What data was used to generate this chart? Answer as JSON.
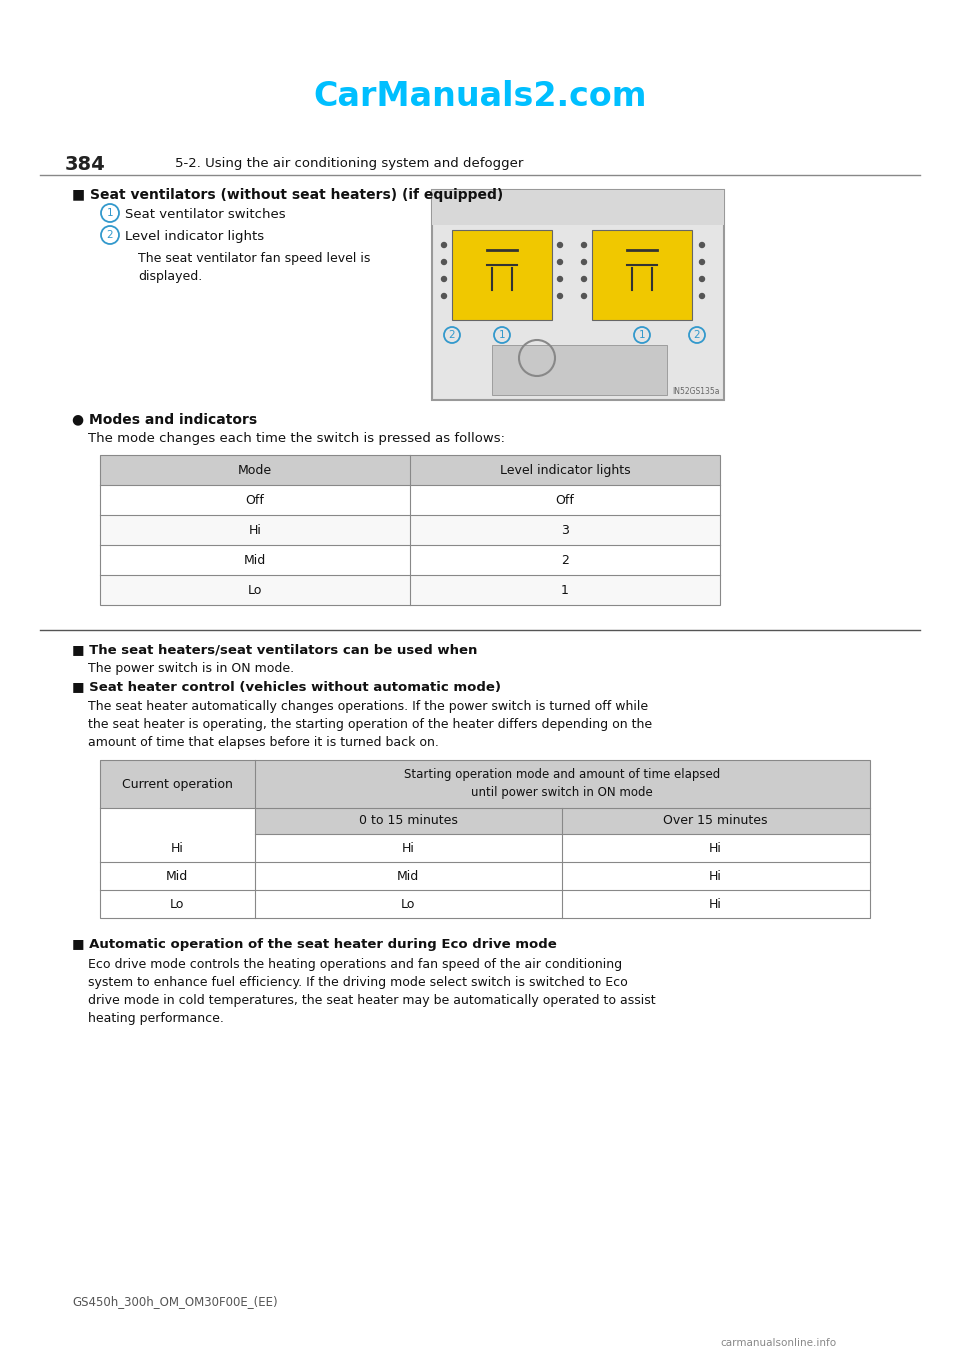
{
  "page_number": "384",
  "page_header": "5-2. Using the air conditioning system and defogger",
  "watermark": "CarManuals2.com",
  "footer_model": "GS450h_300h_OM_OM30F00E_(EE)",
  "footer_site": "carmanualsonline.info",
  "section1_title": "■ Seat ventilators (without seat heaters) (if equipped)",
  "item1_num": "1",
  "item1_text": "Seat ventilator switches",
  "item2_num": "2",
  "item2_text": "Level indicator lights",
  "item2_desc": "The seat ventilator fan speed level is\ndisplayed.",
  "modes_bullet": "●",
  "modes_title": "Modes and indicators",
  "modes_desc": "The mode changes each time the switch is pressed as follows:",
  "table1_headers": [
    "Mode",
    "Level indicator lights"
  ],
  "table1_rows": [
    [
      "Off",
      "Off"
    ],
    [
      "Hi",
      "3"
    ],
    [
      "Mid",
      "2"
    ],
    [
      "Lo",
      "1"
    ]
  ],
  "section2_title": "■ The seat heaters/seat ventilators can be used when",
  "section2_body": "The power switch is in ON mode.",
  "section3_title": "■ Seat heater control (vehicles without automatic mode)",
  "section3_body": "The seat heater automatically changes operations. If the power switch is turned off while\nthe seat heater is operating, the starting operation of the heater differs depending on the\namount of time that elapses before it is turned back on.",
  "table2_col1_header": "Current operation",
  "table2_col2_header": "Starting operation mode and amount of time elapsed\nuntil power switch in ON mode",
  "table2_sub_headers": [
    "0 to 15 minutes",
    "Over 15 minutes"
  ],
  "table2_rows": [
    [
      "Hi",
      "Hi",
      "Hi"
    ],
    [
      "Mid",
      "Mid",
      "Hi"
    ],
    [
      "Lo",
      "Lo",
      "Hi"
    ]
  ],
  "section4_title": "■ Automatic operation of the seat heater during Eco drive mode",
  "section4_body": "Eco drive mode controls the heating operations and fan speed of the air conditioning\nsystem to enhance fuel efficiency. If the driving mode select switch is switched to Eco\ndrive mode in cold temperatures, the seat heater may be automatically operated to assist\nheating performance.",
  "bg_color": "#ffffff",
  "header_line_color": "#888888",
  "table_header_bg": "#cccccc",
  "table_border_color": "#888888",
  "watermark_color": "#00bfff",
  "page_num_color": "#222222",
  "text_color": "#111111"
}
